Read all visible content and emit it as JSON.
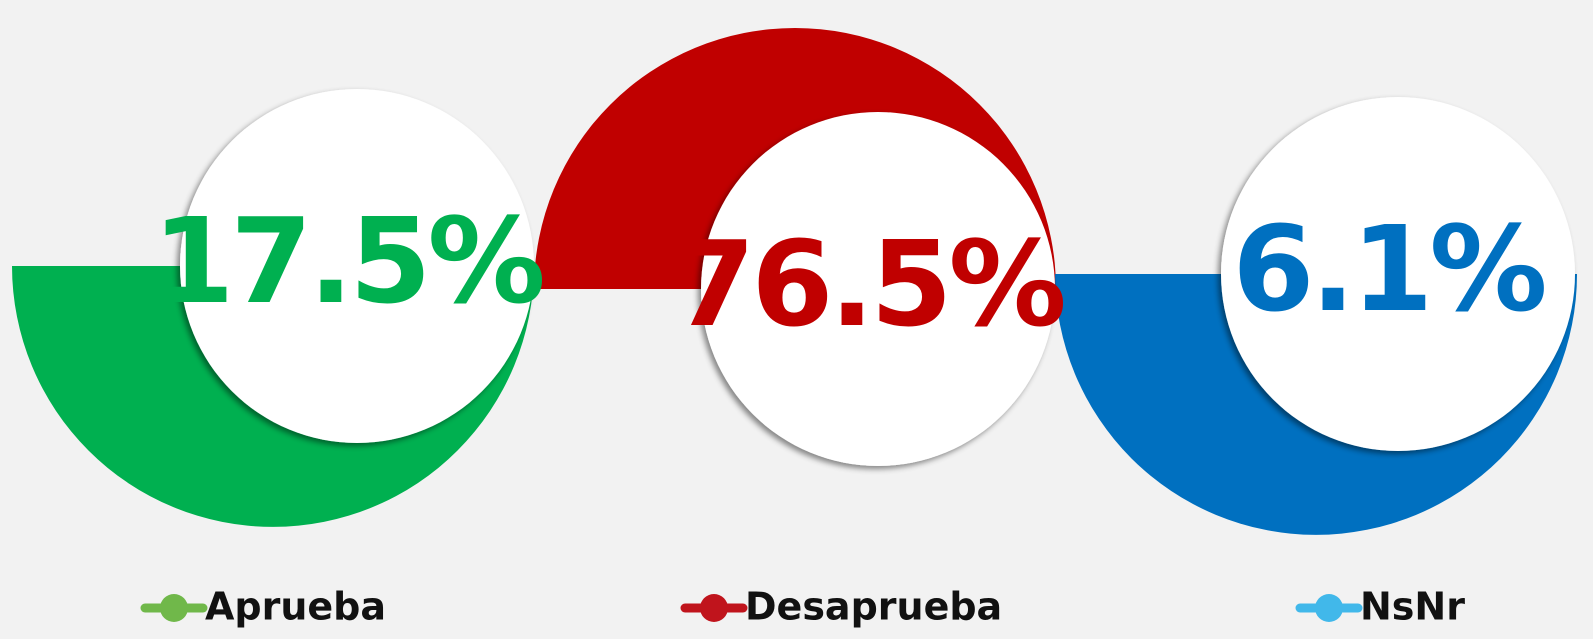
{
  "chart_data": {
    "type": "half-circle",
    "series": [
      {
        "name": "Aprueba",
        "color": "#00b050",
        "marker_color": "#70b84a",
        "values": [
          17.5
        ],
        "value_labels": [
          "17.5%"
        ]
      },
      {
        "name": "Desaprueba",
        "color": "#c00000",
        "marker_color": "#c0141c",
        "values": [
          76.5
        ],
        "value_labels": [
          "76.5%"
        ]
      },
      {
        "name": "NsNr",
        "color": "#0070c0",
        "marker_color": "#41b8ea",
        "values": [
          6.1
        ],
        "value_labels": [
          "6.1%"
        ]
      }
    ]
  }
}
